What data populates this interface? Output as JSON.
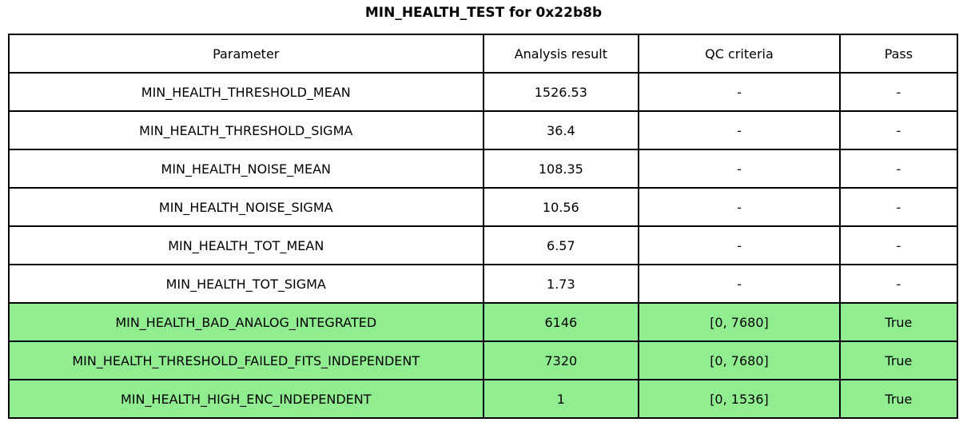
{
  "chart_data": {
    "type": "table",
    "title": "MIN_HEALTH_TEST for 0x22b8b",
    "columns": [
      "Parameter",
      "Analysis result",
      "QC criteria",
      "Pass"
    ],
    "rows": [
      [
        "MIN_HEALTH_THRESHOLD_MEAN",
        "1526.53",
        "-",
        "-"
      ],
      [
        "MIN_HEALTH_THRESHOLD_SIGMA",
        "36.4",
        "-",
        "-"
      ],
      [
        "MIN_HEALTH_NOISE_MEAN",
        "108.35",
        "-",
        "-"
      ],
      [
        "MIN_HEALTH_NOISE_SIGMA",
        "10.56",
        "-",
        "-"
      ],
      [
        "MIN_HEALTH_TOT_MEAN",
        "6.57",
        "-",
        "-"
      ],
      [
        "MIN_HEALTH_TOT_SIGMA",
        "1.73",
        "-",
        "-"
      ],
      [
        "MIN_HEALTH_BAD_ANALOG_INTEGRATED",
        "6146",
        "[0, 7680]",
        "True"
      ],
      [
        "MIN_HEALTH_THRESHOLD_FAILED_FITS_INDEPENDENT",
        "7320",
        "[0, 7680]",
        "True"
      ],
      [
        "MIN_HEALTH_HIGH_ENC_INDEPENDENT",
        "1",
        "[0, 1536]",
        "True"
      ]
    ],
    "row_highlight": [
      false,
      false,
      false,
      false,
      false,
      false,
      true,
      true,
      true
    ],
    "colors": {
      "pass_row_background": "#90EE90",
      "border": "#000000",
      "background": "#ffffff",
      "text": "#000000"
    },
    "layout": {
      "grid": true,
      "header_row": true
    }
  }
}
